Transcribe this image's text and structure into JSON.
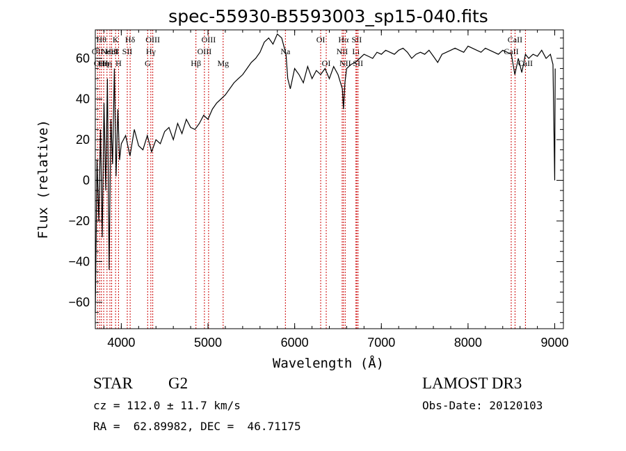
{
  "chart_data": {
    "type": "line",
    "title": "spec-55930-B5593003_sp15-040.fits",
    "xlabel": "Wavelength (Å)",
    "ylabel": "Flux (relative)",
    "xlim": [
      3700,
      9100
    ],
    "ylim": [
      -73,
      74
    ],
    "xticks": [
      4000,
      5000,
      6000,
      7000,
      8000,
      9000
    ],
    "yticks": [
      -60,
      -40,
      -20,
      0,
      20,
      40,
      60
    ],
    "grid": false,
    "legend": "none",
    "line_color": "#000000",
    "marker_color": "#cc0000",
    "series": [
      {
        "x": [
          3700,
          3720,
          3740,
          3760,
          3780,
          3800,
          3820,
          3840,
          3860,
          3880,
          3900,
          3920,
          3940,
          3960,
          3980,
          4000,
          4050,
          4100,
          4150,
          4200,
          4250,
          4300,
          4350,
          4400,
          4450,
          4500,
          4550,
          4600,
          4650,
          4700,
          4750,
          4800,
          4850,
          4900,
          4950,
          5000,
          5050,
          5100,
          5150,
          5200,
          5250,
          5300,
          5350,
          5400,
          5450,
          5500,
          5550,
          5600,
          5650,
          5700,
          5750,
          5800,
          5850,
          5900,
          5920,
          5950,
          6000,
          6050,
          6100,
          6150,
          6200,
          6250,
          6300,
          6350,
          6400,
          6450,
          6500,
          6550,
          6563,
          6580,
          6600,
          6650,
          6700,
          6750,
          6800,
          6850,
          6900,
          6950,
          7000,
          7050,
          7100,
          7150,
          7200,
          7250,
          7300,
          7350,
          7400,
          7450,
          7500,
          7550,
          7600,
          7650,
          7700,
          7750,
          7800,
          7850,
          7900,
          7950,
          8000,
          8050,
          8100,
          8150,
          8200,
          8250,
          8300,
          8350,
          8400,
          8450,
          8500,
          8540,
          8580,
          8620,
          8662,
          8700,
          8750,
          8800,
          8850,
          8900,
          8950,
          8980,
          9000,
          9005
        ],
        "y": [
          -65,
          10,
          -20,
          25,
          -28,
          38,
          -5,
          50,
          -44,
          30,
          8,
          55,
          2,
          35,
          10,
          18,
          22,
          12,
          25,
          17,
          15,
          22,
          14,
          20,
          18,
          24,
          26,
          20,
          28,
          23,
          30,
          26,
          25,
          28,
          32,
          30,
          35,
          38,
          40,
          42,
          45,
          48,
          50,
          52,
          55,
          58,
          60,
          63,
          68,
          70,
          67,
          72,
          70,
          62,
          50,
          45,
          55,
          52,
          48,
          56,
          50,
          54,
          52,
          55,
          50,
          56,
          52,
          45,
          35,
          48,
          55,
          57,
          58,
          60,
          62,
          61,
          60,
          63,
          62,
          64,
          63,
          62,
          64,
          65,
          63,
          60,
          62,
          63,
          62,
          64,
          61,
          58,
          62,
          63,
          64,
          65,
          64,
          63,
          66,
          65,
          64,
          63,
          65,
          64,
          63,
          62,
          64,
          63,
          62,
          52,
          60,
          53,
          62,
          60,
          62,
          61,
          64,
          60,
          62,
          57,
          0,
          55
        ]
      }
    ],
    "lines": [
      {
        "x": 3726,
        "label": "OII",
        "row": 2
      },
      {
        "x": 3750,
        "label": "OII",
        "row": 3
      },
      {
        "x": 3770,
        "label": "Hθ",
        "row": 1
      },
      {
        "x": 3797,
        "label": "Hη",
        "row": 3
      },
      {
        "x": 3835,
        "label": "Hη",
        "row": 3
      },
      {
        "x": 3869,
        "label": "NeIII",
        "row": 2
      },
      {
        "x": 3889,
        "label": "HeI",
        "row": 2
      },
      {
        "x": 3934,
        "label": "K",
        "row": 1
      },
      {
        "x": 3968,
        "label": "H",
        "row": 3
      },
      {
        "x": 4069,
        "label": "SII",
        "row": 2
      },
      {
        "x": 4102,
        "label": "Hδ",
        "row": 1
      },
      {
        "x": 4304,
        "label": "G",
        "row": 3
      },
      {
        "x": 4341,
        "label": "Hγ",
        "row": 2
      },
      {
        "x": 4363,
        "label": "OIII",
        "row": 1
      },
      {
        "x": 4861,
        "label": "Hβ",
        "row": 3
      },
      {
        "x": 4959,
        "label": "OIII",
        "row": 2
      },
      {
        "x": 5007,
        "label": "OIII",
        "row": 1
      },
      {
        "x": 5175,
        "label": "Mg",
        "row": 3
      },
      {
        "x": 5893,
        "label": "Na",
        "row": 2
      },
      {
        "x": 6300,
        "label": "OI",
        "row": 1
      },
      {
        "x": 6364,
        "label": "OI",
        "row": 3
      },
      {
        "x": 6548,
        "label": "NII",
        "row": 2
      },
      {
        "x": 6563,
        "label": "Hα",
        "row": 1
      },
      {
        "x": 6583,
        "label": "NII",
        "row": 3
      },
      {
        "x": 6707,
        "label": "Li",
        "row": 2
      },
      {
        "x": 6716,
        "label": "SII",
        "row": 1
      },
      {
        "x": 6731,
        "label": "SII",
        "row": 3
      },
      {
        "x": 8498,
        "label": "CaII",
        "row": 2
      },
      {
        "x": 8542,
        "label": "CaII",
        "row": 1
      },
      {
        "x": 8662,
        "label": "CaII",
        "row": 3
      }
    ]
  },
  "info": {
    "object_class": "STAR",
    "subclass": "G2",
    "survey": "LAMOST DR3",
    "cz": "cz = 112.0 ± 11.7 km/s",
    "obs_date": "Obs-Date: 20120103",
    "coords": "RA =  62.89982, DEC =  46.71175"
  }
}
